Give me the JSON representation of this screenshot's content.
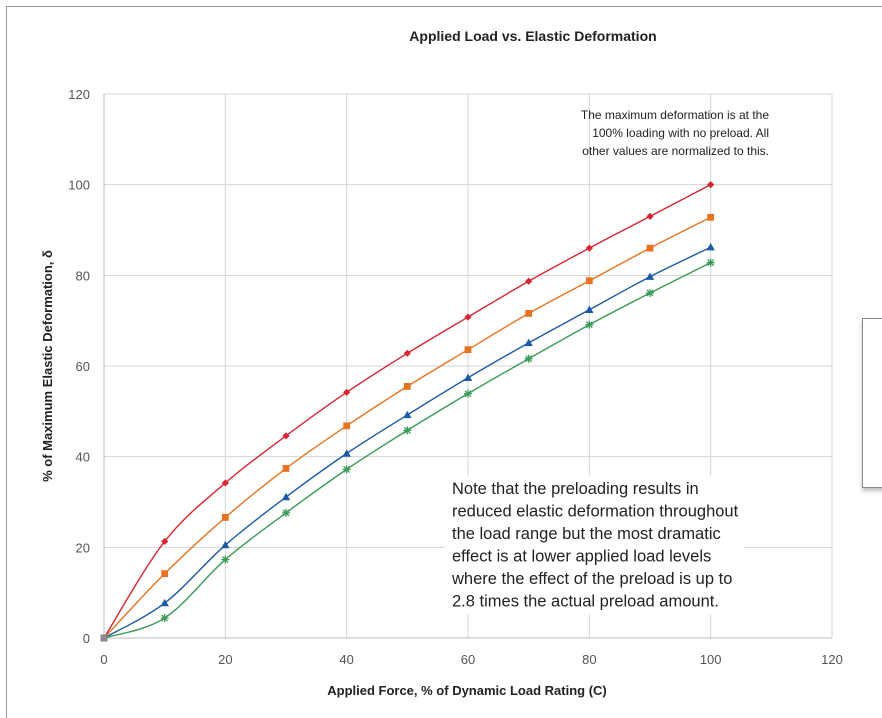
{
  "chart_data": {
    "type": "line",
    "title": "Applied Load vs. Elastic Deformation",
    "xlabel": "Applied Force, % of Dynamic Load Rating (C)",
    "ylabel": "% of Maximum Elastic Deformation, δ",
    "xlim": [
      0,
      120
    ],
    "ylim": [
      0,
      120
    ],
    "xticks": [
      "0",
      "20",
      "40",
      "60",
      "80",
      "100",
      "120"
    ],
    "yticks": [
      "0",
      "20",
      "40",
      "60",
      "80",
      "100",
      "120"
    ],
    "grid": true,
    "x": [
      0,
      10,
      20,
      30,
      40,
      50,
      60,
      70,
      80,
      90,
      100
    ],
    "series": [
      {
        "color": "#d7262f",
        "marker": "diamond",
        "values": [
          0,
          21.3,
          34.2,
          44.6,
          54.2,
          62.8,
          70.8,
          78.7,
          86.0,
          93.0,
          100.0
        ]
      },
      {
        "color": "#e8731f",
        "marker": "square",
        "values": [
          0,
          14.2,
          26.6,
          37.4,
          46.8,
          55.5,
          63.6,
          71.6,
          78.8,
          86.0,
          92.8
        ]
      },
      {
        "color": "#1b5aa6",
        "marker": "triangle",
        "values": [
          0,
          7.7,
          20.5,
          31.1,
          40.7,
          49.2,
          57.4,
          65.1,
          72.4,
          79.7,
          86.2
        ]
      },
      {
        "color": "#3a9a57",
        "marker": "star",
        "values": [
          0,
          4.4,
          17.3,
          27.6,
          37.2,
          45.8,
          53.9,
          61.6,
          69.1,
          76.1,
          82.8
        ]
      }
    ],
    "annotations": {
      "top_note": [
        "The maximum deformation is at the",
        "100% loading with no preload. All",
        "other values are normalized to this."
      ],
      "bottom_note": [
        "Note that the preloading results in",
        "reduced elastic deformation throughout",
        "the load range but the most dramatic",
        "effect is at lower applied load levels",
        "where the effect of the preload is up to",
        "2.8 times the actual preload amount."
      ]
    }
  }
}
